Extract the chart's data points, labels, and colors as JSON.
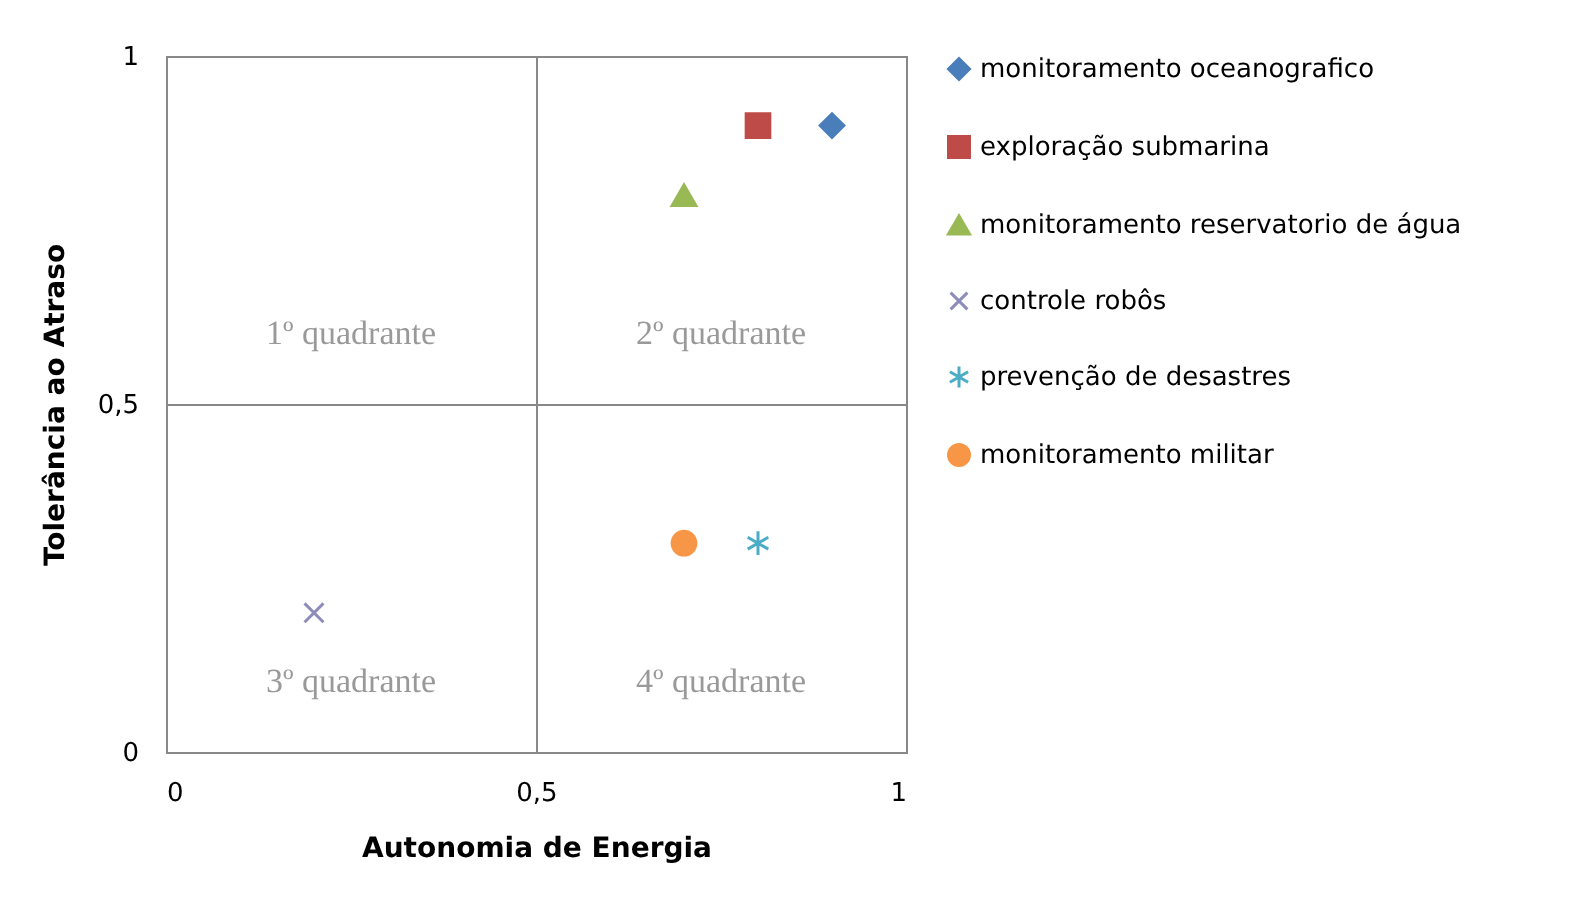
{
  "chart_data": {
    "type": "scatter",
    "xlabel": "Autonomia de Energia",
    "ylabel": "Tolerância ao Atraso",
    "xlim": [
      0,
      1
    ],
    "ylim": [
      0,
      1
    ],
    "xticks": [
      0,
      {
        "value": 0.5,
        "label": "0,5"
      },
      1
    ],
    "yticks": [
      0,
      {
        "value": 0.5,
        "label": "0,5"
      },
      1
    ],
    "grid": true,
    "legend": "right",
    "annotations": [
      "1º quadrante",
      "2º quadrante",
      "3º quadrante",
      "4º quadrante"
    ],
    "series": [
      {
        "name": "monitoramento oceanografico",
        "color": "#4a7ebb",
        "marker": "diamond",
        "x": [
          0.9
        ],
        "values": [
          0.9
        ]
      },
      {
        "name": "exploração submarina",
        "color": "#be4b48",
        "marker": "square",
        "x": [
          0.8
        ],
        "values": [
          0.9
        ]
      },
      {
        "name": "monitoramento reservatorio de água",
        "color": "#98b954",
        "marker": "triangle",
        "x": [
          0.7
        ],
        "values": [
          0.8
        ]
      },
      {
        "name": "controle robôs",
        "color": "#8e8cba",
        "marker": "cross",
        "x": [
          0.2
        ],
        "values": [
          0.2
        ]
      },
      {
        "name": "prevenção de desastres",
        "color": "#4bacc6",
        "marker": "cross",
        "x": [
          0.8
        ],
        "values": [
          0.3
        ]
      },
      {
        "name": "monitoramento militar",
        "color": "#f79646",
        "marker": "circle",
        "x": [
          0.7
        ],
        "values": [
          0.3
        ]
      }
    ]
  }
}
